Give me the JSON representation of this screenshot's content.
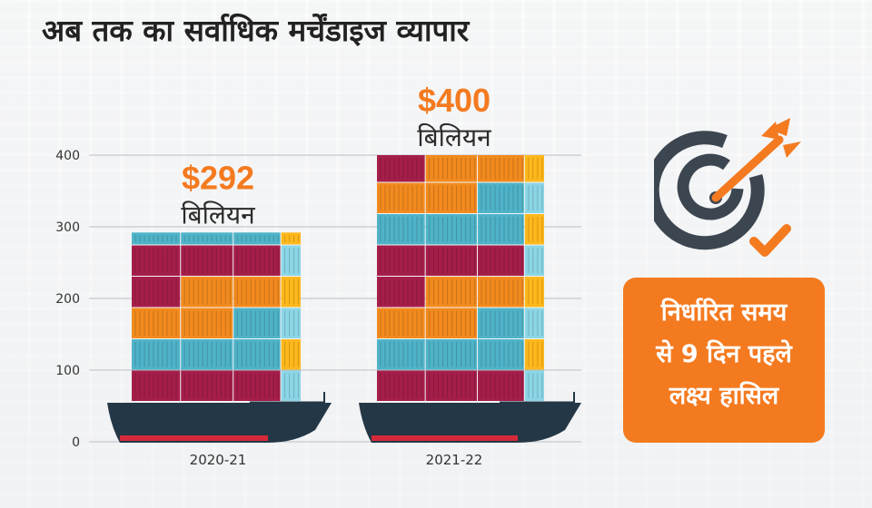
{
  "title": "अब तक का सर्वाधिक मर्चेंडाइज व्यापार",
  "chart_data": {
    "type": "bar",
    "categories": [
      "2020-21",
      "2021-22"
    ],
    "values": [
      292,
      400
    ],
    "value_labels": [
      "$292",
      "$400"
    ],
    "unit_label": "बिलियन",
    "yticks": [
      0,
      100,
      200,
      300,
      400
    ],
    "ylim": [
      0,
      400
    ],
    "grid": true,
    "colors": {
      "value_text": "#f47a20",
      "container_colors": [
        "#a51e4a",
        "#f28a1e",
        "#4fb3c8",
        "#8bd6e6",
        "#ffb81c"
      ],
      "ship_hull": "#243746"
    }
  },
  "badge": {
    "lines": [
      "निर्धारित समय",
      "से 9 दिन पहले",
      "लक्ष्य हासिल"
    ],
    "color": "#f47a20"
  },
  "icon": "target-arrow-check-icon"
}
